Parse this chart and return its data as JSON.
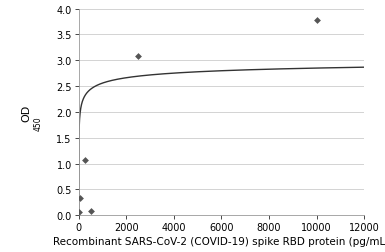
{
  "scatter_x": [
    16,
    63,
    250,
    500,
    2500,
    10000
  ],
  "scatter_y": [
    0.07,
    0.33,
    1.07,
    0.08,
    3.09,
    3.78
  ],
  "curve_x_start": 1,
  "curve_Bmax": 3.18,
  "curve_n": 0.32,
  "curve_Kd": 12,
  "xlim": [
    0,
    12000
  ],
  "ylim": [
    0,
    4
  ],
  "xticks": [
    0,
    2000,
    4000,
    6000,
    8000,
    10000,
    12000
  ],
  "yticks": [
    0,
    0.5,
    1.0,
    1.5,
    2.0,
    2.5,
    3.0,
    3.5,
    4.0
  ],
  "xlabel": "Recombinant SARS-CoV-2 (COVID-19) spike RBD protein (pg/mL)",
  "marker_color": "#555555",
  "line_color": "#333333",
  "background_color": "#ffffff",
  "grid_color": "#cccccc",
  "font_size_axis_label": 7.5,
  "font_size_tick": 7
}
